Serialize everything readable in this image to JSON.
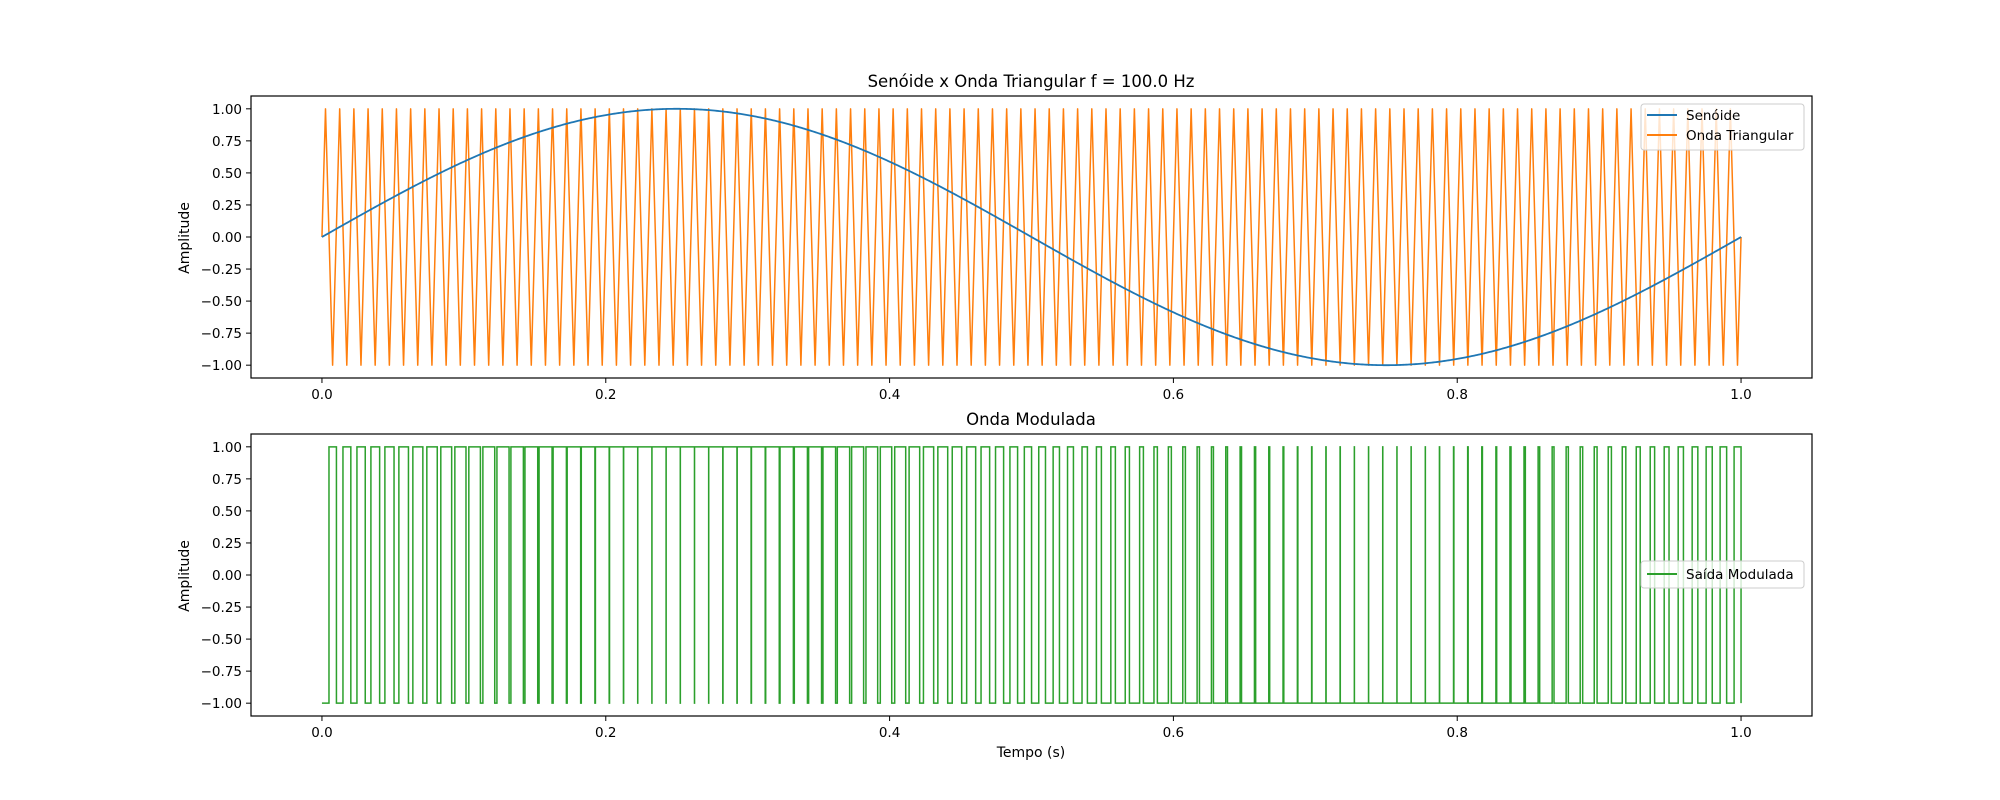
{
  "chart_data": [
    {
      "type": "line",
      "title": "Senóide x Onda Triangular f = 100.0 Hz",
      "xlabel": "",
      "ylabel": "Amplitude",
      "xlim": [
        -0.05,
        1.05
      ],
      "ylim": [
        -1.1,
        1.1
      ],
      "xticks": [
        0.0,
        0.2,
        0.4,
        0.6,
        0.8,
        1.0
      ],
      "xtick_labels": [
        "0.0",
        "0.2",
        "0.4",
        "0.6",
        "0.8",
        "1.0"
      ],
      "yticks": [
        1.0,
        0.75,
        0.5,
        0.25,
        0.0,
        -0.25,
        -0.5,
        -0.75,
        -1.0
      ],
      "ytick_labels": [
        "1.00",
        "0.75",
        "0.50",
        "0.25",
        "0.00",
        "−0.25",
        "−0.50",
        "−0.75",
        "−1.00"
      ],
      "grid": false,
      "legend_position": "top-right",
      "series": [
        {
          "name": "Senóide",
          "color": "#1f77b4",
          "function": "sin(2*pi*1*t)",
          "frequency_hz": 1,
          "x_range": [
            0,
            1
          ]
        },
        {
          "name": "Onda Triangular",
          "color": "#ff7f0e",
          "function": "triangle",
          "frequency_hz": 100,
          "x_range": [
            0,
            1
          ]
        }
      ]
    },
    {
      "type": "line",
      "title": "Onda Modulada",
      "xlabel": "Tempo (s)",
      "ylabel": "Amplitude",
      "xlim": [
        -0.05,
        1.05
      ],
      "ylim": [
        -1.1,
        1.1
      ],
      "xticks": [
        0.0,
        0.2,
        0.4,
        0.6,
        0.8,
        1.0
      ],
      "xtick_labels": [
        "0.0",
        "0.2",
        "0.4",
        "0.6",
        "0.8",
        "1.0"
      ],
      "yticks": [
        1.0,
        0.75,
        0.5,
        0.25,
        0.0,
        -0.25,
        -0.5,
        -0.75,
        -1.0
      ],
      "ytick_labels": [
        "1.00",
        "0.75",
        "0.50",
        "0.25",
        "0.00",
        "−0.25",
        "−0.50",
        "−0.75",
        "−1.00"
      ],
      "grid": false,
      "legend_position": "center-right",
      "series": [
        {
          "name": "Saída Modulada",
          "color": "#2ca02c",
          "function": "pwm: +1 where sine > triangle, else -1",
          "x_range": [
            0,
            1
          ]
        }
      ]
    }
  ]
}
